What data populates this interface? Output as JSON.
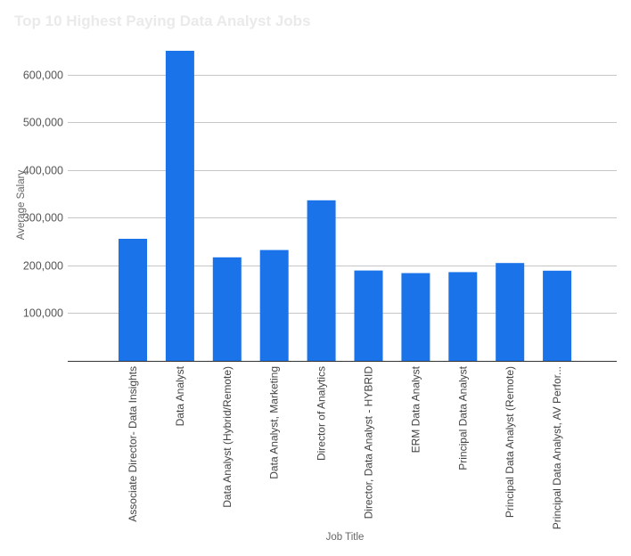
{
  "chart_data": {
    "type": "bar",
    "title": "Top 10 Highest Paying Data Analyst Jobs",
    "xlabel": "Job Title",
    "ylabel": "Average Salary",
    "ylim": [
      0,
      650000
    ],
    "yticks": [
      {
        "value": 100000,
        "label": "100,000"
      },
      {
        "value": 200000,
        "label": "200,000"
      },
      {
        "value": 300000,
        "label": "300,000"
      },
      {
        "value": 400000,
        "label": "400,000"
      },
      {
        "value": 500000,
        "label": "500,000"
      },
      {
        "value": 600000,
        "label": "600,000"
      }
    ],
    "grid": true,
    "legend": "none",
    "color": "#1a73e8",
    "categories": [
      "Associate Director- Data Insights",
      "Data Analyst",
      "Data Analyst (Hybrid/Remote)",
      "Data Analyst, Marketing",
      "Director of Analytics",
      "Director, Data Analyst - HYBRID",
      "ERM Data Analyst",
      "Principal Data Analyst",
      "Principal Data Analyst (Remote)",
      "Principal Data Analyst, AV Perfor..."
    ],
    "values": [
      255829.5,
      650000,
      217000,
      232423,
      336500,
      189309,
      184000,
      186000,
      205000,
      189000
    ]
  }
}
